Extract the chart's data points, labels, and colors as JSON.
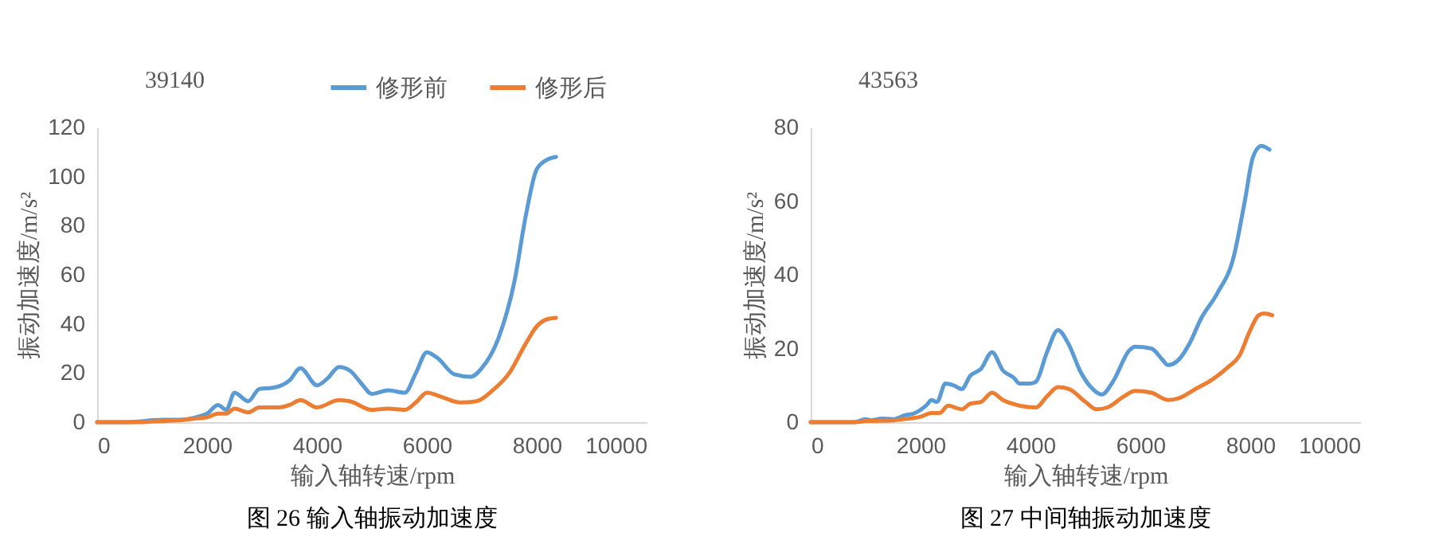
{
  "chart_data": [
    {
      "type": "line",
      "title": "图 26  输入轴振动加速度",
      "annotations": [
        "39140"
      ],
      "xlabel": "输入轴转速/rpm",
      "ylabel": "振动加速度/m/s²",
      "legend": "top",
      "grid": false,
      "xlim": [
        0,
        10000
      ],
      "xticks": [
        0,
        2000,
        4000,
        6000,
        8000,
        10000
      ],
      "ylim": [
        0,
        120
      ],
      "yticks": [
        0,
        20,
        40,
        60,
        80,
        100,
        120
      ],
      "series": [
        {
          "name": "修形前",
          "color": "#5b9bd5",
          "x": [
            0,
            500,
            800,
            1000,
            1200,
            1500,
            1800,
            2000,
            2200,
            2350,
            2500,
            2750,
            2950,
            3200,
            3500,
            3700,
            4000,
            4200,
            4400,
            4600,
            4800,
            5000,
            5300,
            5600,
            5800,
            6000,
            6200,
            6500,
            6800,
            7000,
            7300,
            7600,
            7800,
            8000,
            8200,
            8350
          ],
          "values": [
            0,
            0,
            0.3,
            0.8,
            1,
            1,
            2,
            3.5,
            7,
            5,
            12,
            8.5,
            13.5,
            14,
            17,
            22,
            15,
            18,
            22.5,
            21,
            16,
            11.5,
            13,
            12,
            20,
            28.5,
            26,
            19.5,
            18.5,
            22,
            34,
            58,
            84,
            103,
            107,
            108
          ]
        },
        {
          "name": "修形后",
          "color": "#ed7d31",
          "x": [
            0,
            800,
            1000,
            1500,
            1800,
            2000,
            2200,
            2350,
            2500,
            2750,
            2950,
            3300,
            3500,
            3700,
            4000,
            4400,
            4600,
            5000,
            5300,
            5600,
            5800,
            6000,
            6300,
            6600,
            6900,
            7200,
            7500,
            7800,
            8000,
            8200,
            8350
          ],
          "values": [
            0,
            0,
            0.3,
            0.8,
            1.5,
            2,
            3.5,
            3.5,
            5.5,
            4,
            6,
            6,
            7,
            9,
            6,
            9,
            8.5,
            5,
            5.5,
            5,
            8,
            12,
            10,
            8,
            8.5,
            13,
            20,
            32,
            39,
            42,
            42.5
          ]
        }
      ]
    },
    {
      "type": "line",
      "title": "图 27  中间轴振动加速度",
      "annotations": [
        "43563"
      ],
      "xlabel": "输入轴转速/rpm",
      "ylabel": "振动加速度/m/s²",
      "legend": "top",
      "grid": false,
      "xlim": [
        0,
        10000
      ],
      "xticks": [
        0,
        2000,
        4000,
        6000,
        8000,
        10000
      ],
      "ylim": [
        0,
        80
      ],
      "yticks": [
        0,
        20,
        40,
        60,
        80
      ],
      "series": [
        {
          "name": "修形前",
          "color": "#5b9bd5",
          "x": [
            0,
            800,
            1000,
            1100,
            1300,
            1500,
            1700,
            1900,
            2100,
            2200,
            2300,
            2450,
            2600,
            2750,
            2900,
            3100,
            3300,
            3500,
            3700,
            3800,
            4000,
            4100,
            4300,
            4500,
            4700,
            4900,
            5100,
            5300,
            5500,
            5800,
            5900,
            6200,
            6400,
            6500,
            6700,
            6900,
            7100,
            7400,
            7700,
            7900,
            8050,
            8200,
            8350
          ],
          "values": [
            0,
            0,
            0.8,
            0.5,
            1,
            0.8,
            1.8,
            2.5,
            4.5,
            6,
            5.5,
            10.5,
            10,
            9,
            12.5,
            14.5,
            19,
            14,
            12,
            10.5,
            10.5,
            11,
            19,
            25,
            21,
            14,
            9.5,
            7.5,
            11,
            19.5,
            20.5,
            20,
            17,
            15.5,
            17,
            21.5,
            28,
            35,
            45,
            60,
            72,
            75,
            74
          ]
        },
        {
          "name": "修形后",
          "color": "#ed7d31",
          "x": [
            0,
            800,
            1000,
            1500,
            1800,
            2000,
            2200,
            2350,
            2500,
            2750,
            2900,
            3100,
            3300,
            3500,
            3800,
            4100,
            4300,
            4500,
            4700,
            5000,
            5200,
            5400,
            5700,
            5900,
            6200,
            6500,
            6700,
            7000,
            7300,
            7600,
            7800,
            8000,
            8150,
            8250,
            8400
          ],
          "values": [
            0,
            0,
            0.3,
            0.5,
            1,
            1.5,
            2.5,
            2.5,
            4.5,
            3.5,
            5,
            5.5,
            8,
            6,
            4.5,
            4,
            7,
            9.5,
            9,
            5.5,
            3.5,
            4,
            7,
            8.5,
            8,
            6,
            6.5,
            9,
            11.5,
            15,
            18,
            25,
            29,
            29.5,
            29
          ]
        }
      ]
    }
  ]
}
